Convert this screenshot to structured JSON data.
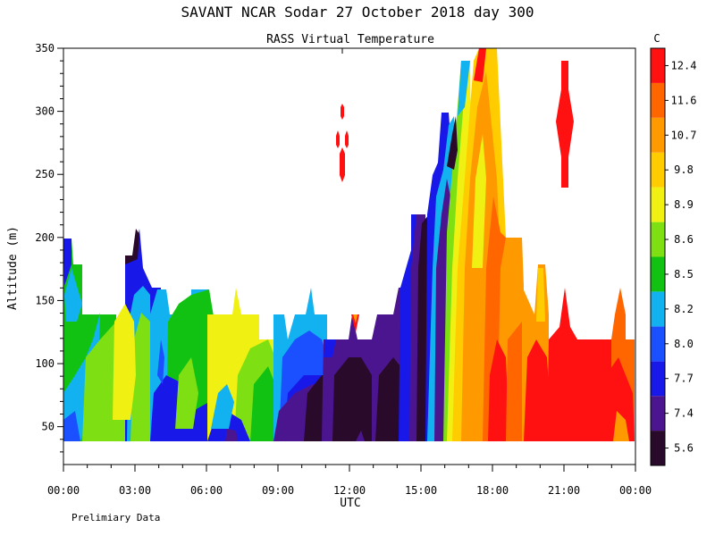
{
  "chart_data": {
    "type": "heatmap",
    "title": "SAVANT  NCAR Sodar  27 October 2018  day 300",
    "subtitle": "RASS Virtual Temperature",
    "xlabel": "UTC",
    "ylabel": "Altitude (m)",
    "footnote": "Prelimiary Data",
    "colorbar_unit": "C",
    "xlim_hours": [
      0,
      24
    ],
    "ylim": [
      20,
      350
    ],
    "x_ticks": [
      "00:00",
      "03:00",
      "06:00",
      "09:00",
      "12:00",
      "15:00",
      "18:00",
      "21:00",
      "00:00"
    ],
    "y_ticks": [
      50,
      100,
      150,
      200,
      250,
      300,
      350
    ],
    "colorbar": {
      "labels": [
        "5.6",
        "7.4",
        "7.7",
        "8.0",
        "8.2",
        "8.5",
        "8.6",
        "8.9",
        "9.8",
        "10.7",
        "11.6",
        "12.4"
      ],
      "colors": [
        "#2a0a2a",
        "#4b1590",
        "#1818e8",
        "#1a50ff",
        "#12b2f0",
        "#12c212",
        "#7ee012",
        "#f0f012",
        "#ffcc00",
        "#ff9900",
        "#ff6600",
        "#ff1111"
      ]
    },
    "temperature_bin_by_hour_mid_level": [
      {
        "hour": 0.5,
        "bin": 5
      },
      {
        "hour": 1.5,
        "bin": 4
      },
      {
        "hour": 2.5,
        "bin": 6
      },
      {
        "hour": 3.5,
        "bin": 5
      },
      {
        "hour": 4.5,
        "bin": 5
      },
      {
        "hour": 5.5,
        "bin": 6
      },
      {
        "hour": 6.5,
        "bin": 7
      },
      {
        "hour": 7.5,
        "bin": 7
      },
      {
        "hour": 8.5,
        "bin": 5
      },
      {
        "hour": 9.5,
        "bin": 3
      },
      {
        "hour": 10.5,
        "bin": 1
      },
      {
        "hour": 11.5,
        "bin": 0
      },
      {
        "hour": 12.5,
        "bin": 0
      },
      {
        "hour": 13.5,
        "bin": 0
      },
      {
        "hour": 14.5,
        "bin": 1
      },
      {
        "hour": 15.5,
        "bin": 2
      },
      {
        "hour": 16.5,
        "bin": 8
      },
      {
        "hour": 17.5,
        "bin": 9
      },
      {
        "hour": 18.5,
        "bin": 10
      },
      {
        "hour": 19.5,
        "bin": 10
      },
      {
        "hour": 20.5,
        "bin": 11
      },
      {
        "hour": 21.5,
        "bin": 11
      },
      {
        "hour": 22.5,
        "bin": 11
      },
      {
        "hour": 23.5,
        "bin": 10
      }
    ]
  }
}
